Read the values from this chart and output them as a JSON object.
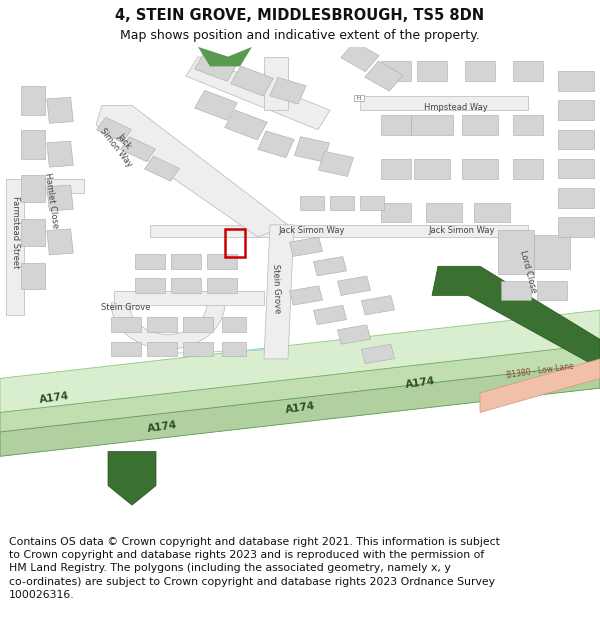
{
  "title": "4, STEIN GROVE, MIDDLESBROUGH, TS5 8DN",
  "subtitle": "Map shows position and indicative extent of the property.",
  "footer": "Contains OS data © Crown copyright and database right 2021. This information is subject\nto Crown copyright and database rights 2023 and is reproduced with the permission of\nHM Land Registry. The polygons (including the associated geometry, namely x, y\nco-ordinates) are subject to Crown copyright and database rights 2023 Ordnance Survey\n100026316.",
  "title_fontsize": 10.5,
  "subtitle_fontsize": 9,
  "footer_fontsize": 7.8,
  "background_color": "#ffffff",
  "building_color": "#d4d4d4",
  "building_edge": "#aaaaaa",
  "property_color": "#cc0000",
  "street_label_color": "#444444",
  "label_fontsize": 6.0,
  "a174_label_color": "#2a5020",
  "a174_label_size": 7.5
}
